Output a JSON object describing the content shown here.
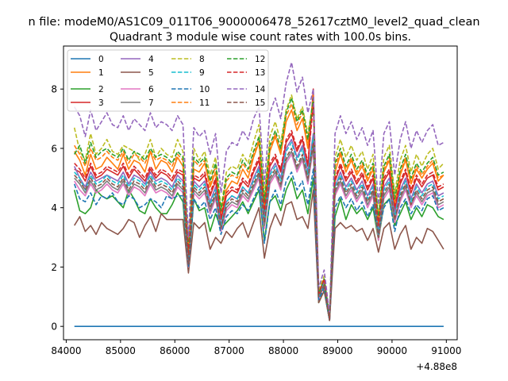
{
  "chart_data": {
    "type": "line",
    "suptitle": "n file: modeM0/AS1C09_011T06_9000006478_52617cztM0_level2_quad_clean",
    "title": "Quadrant 3 module wise count rates with 100.0s bins.",
    "xlabel": "",
    "ylabel": "",
    "x_offset_label": "+4.88e8",
    "xlim": [
      83950,
      91200
    ],
    "ylim": [
      -0.45,
      9.45
    ],
    "xticks": [
      84000,
      85000,
      86000,
      87000,
      88000,
      89000,
      90000,
      91000
    ],
    "yticks": [
      0,
      2,
      4,
      6,
      8
    ],
    "legend_location": "upper-left",
    "legend_columns": 4,
    "x_start": 84150,
    "x_step": 100,
    "series": [
      {
        "name": "0",
        "color": "#1f77b4",
        "dash": false,
        "values": [
          0,
          0,
          0,
          0,
          0,
          0,
          0,
          0,
          0,
          0,
          0,
          0,
          0,
          0,
          0,
          0,
          0,
          0,
          0,
          0,
          0,
          0,
          0,
          0,
          0,
          0,
          0,
          0,
          0,
          0,
          0,
          0,
          0,
          0,
          0,
          0,
          0,
          0,
          0,
          0,
          0,
          0,
          0,
          0,
          0,
          0,
          0,
          0,
          0,
          0,
          0,
          0,
          0,
          0,
          0,
          0,
          0,
          0,
          0,
          0,
          0,
          0,
          0,
          0,
          0,
          0,
          0,
          0,
          0
        ]
      },
      {
        "name": "1",
        "color": "#ff7f0e",
        "dash": false,
        "values": [
          5.9,
          5.6,
          5.1,
          5.8,
          5.3,
          5.4,
          5.7,
          5.5,
          5.3,
          5.8,
          5.3,
          5.6,
          5.5,
          5.2,
          5.9,
          5.3,
          5.6,
          5.5,
          5.2,
          5.7,
          5.4,
          2.3,
          5.3,
          5.2,
          5.5,
          4.7,
          5.2,
          3.6,
          4.6,
          4.9,
          4.8,
          5.3,
          5.0,
          5.7,
          6.2,
          4.0,
          5.9,
          6.4,
          5.8,
          6.9,
          7.3,
          6.6,
          7.0,
          6.0,
          7.6,
          1.1,
          1.5,
          0.3,
          5.2,
          5.8,
          5.2,
          5.6,
          5.1,
          5.4,
          4.9,
          5.3,
          3.4,
          5.2,
          5.6,
          4.1,
          5.1,
          5.6,
          4.8,
          5.3,
          5.0,
          5.3,
          5.5,
          4.9,
          5.1
        ]
      },
      {
        "name": "2",
        "color": "#2ca02c",
        "dash": false,
        "values": [
          4.6,
          3.9,
          3.8,
          4.0,
          4.6,
          4.4,
          4.3,
          4.4,
          4.2,
          4.0,
          4.6,
          4.3,
          3.9,
          3.8,
          4.3,
          4.0,
          3.8,
          3.8,
          4.1,
          4.5,
          4.2,
          1.9,
          4.3,
          3.9,
          4.0,
          3.2,
          3.8,
          3.3,
          3.5,
          3.7,
          3.9,
          4.2,
          3.8,
          4.2,
          4.6,
          2.9,
          4.2,
          4.4,
          3.9,
          4.6,
          5.0,
          4.3,
          4.6,
          3.8,
          5.0,
          0.8,
          1.2,
          0.2,
          3.7,
          4.3,
          3.6,
          4.1,
          3.8,
          4.0,
          3.6,
          4.0,
          2.9,
          4.1,
          4.3,
          3.4,
          3.8,
          4.2,
          3.6,
          4.0,
          3.7,
          4.1,
          4.0,
          3.7,
          3.6
        ]
      },
      {
        "name": "3",
        "color": "#d62728",
        "dash": false,
        "values": [
          5.3,
          5.2,
          4.9,
          5.4,
          5.0,
          5.1,
          5.3,
          5.2,
          5.1,
          5.4,
          5.0,
          5.3,
          5.1,
          4.9,
          5.3,
          5.0,
          5.2,
          5.1,
          4.9,
          5.2,
          5.1,
          2.3,
          5.0,
          4.9,
          5.1,
          4.4,
          4.9,
          3.6,
          4.4,
          4.6,
          4.5,
          4.9,
          4.7,
          5.2,
          5.6,
          3.8,
          5.4,
          5.7,
          5.2,
          6.2,
          6.5,
          5.9,
          6.3,
          5.4,
          8.0,
          1.1,
          1.6,
          0.3,
          4.9,
          5.4,
          4.9,
          5.2,
          4.8,
          5.1,
          4.6,
          5.0,
          3.3,
          4.9,
          5.2,
          3.9,
          4.8,
          5.2,
          4.5,
          5.0,
          4.7,
          5.0,
          5.1,
          4.6,
          4.7
        ]
      },
      {
        "name": "4",
        "color": "#9467bd",
        "dash": false,
        "values": [
          5.4,
          5.0,
          4.7,
          5.2,
          4.9,
          5.0,
          5.1,
          5.0,
          4.9,
          5.2,
          4.8,
          5.1,
          5.0,
          4.8,
          5.2,
          4.9,
          5.0,
          4.9,
          4.7,
          5.1,
          4.9,
          2.2,
          4.9,
          4.7,
          4.9,
          4.2,
          4.7,
          3.4,
          4.2,
          4.4,
          4.3,
          4.7,
          4.5,
          5.0,
          5.4,
          3.6,
          5.2,
          5.5,
          5.0,
          6.0,
          6.3,
          5.7,
          6.1,
          5.2,
          6.5,
          1.0,
          1.5,
          0.3,
          4.7,
          5.2,
          4.7,
          5.0,
          4.6,
          4.9,
          4.4,
          4.8,
          3.2,
          4.7,
          5.0,
          3.8,
          4.6,
          5.0,
          4.3,
          4.8,
          4.5,
          4.8,
          4.9,
          4.4,
          4.5
        ]
      },
      {
        "name": "5",
        "color": "#8c564b",
        "dash": false,
        "values": [
          3.4,
          3.7,
          3.2,
          3.4,
          3.1,
          3.5,
          3.3,
          3.2,
          3.1,
          3.3,
          3.6,
          3.5,
          3.0,
          3.4,
          3.7,
          3.2,
          3.8,
          3.6,
          3.6,
          3.6,
          3.6,
          1.8,
          3.5,
          3.3,
          3.5,
          2.6,
          3.0,
          2.8,
          3.2,
          3.0,
          3.3,
          3.5,
          3.0,
          3.5,
          4.0,
          2.3,
          3.3,
          3.8,
          3.4,
          4.1,
          4.2,
          3.6,
          3.7,
          3.3,
          4.6,
          0.8,
          1.2,
          0.2,
          3.3,
          3.5,
          3.3,
          3.4,
          3.2,
          3.3,
          2.9,
          3.3,
          2.5,
          3.3,
          3.5,
          2.6,
          3.1,
          3.4,
          2.6,
          3.0,
          2.8,
          3.3,
          3.2,
          2.9,
          2.6
        ]
      },
      {
        "name": "6",
        "color": "#e377c2",
        "dash": false,
        "values": [
          4.9,
          4.6,
          4.4,
          4.8,
          4.5,
          4.6,
          4.8,
          4.6,
          4.5,
          4.8,
          4.4,
          4.7,
          4.6,
          4.4,
          4.8,
          4.5,
          4.6,
          4.5,
          4.3,
          4.7,
          4.5,
          2.0,
          4.5,
          4.3,
          4.5,
          3.8,
          4.3,
          3.2,
          3.9,
          4.1,
          4.0,
          4.4,
          4.2,
          4.6,
          5.0,
          3.3,
          4.8,
          5.1,
          4.6,
          5.5,
          5.8,
          5.2,
          5.6,
          4.8,
          6.0,
          0.9,
          1.4,
          0.2,
          4.4,
          4.8,
          4.3,
          4.6,
          4.2,
          4.5,
          4.0,
          4.4,
          2.9,
          4.3,
          4.6,
          3.5,
          4.2,
          4.6,
          4.0,
          4.4,
          4.1,
          4.4,
          4.5,
          4.0,
          4.1
        ]
      },
      {
        "name": "7",
        "color": "#7f7f7f",
        "dash": false,
        "values": [
          5.0,
          4.8,
          4.5,
          4.9,
          4.6,
          4.7,
          4.9,
          4.7,
          4.6,
          4.9,
          4.5,
          4.8,
          4.7,
          4.5,
          4.9,
          4.6,
          4.7,
          4.6,
          4.4,
          4.8,
          4.6,
          2.1,
          4.6,
          4.4,
          4.6,
          3.9,
          4.4,
          3.3,
          4.0,
          4.2,
          4.1,
          4.5,
          4.3,
          4.7,
          5.1,
          3.4,
          4.9,
          5.2,
          4.7,
          5.6,
          5.9,
          5.3,
          5.7,
          4.9,
          6.1,
          1.0,
          1.4,
          0.2,
          4.5,
          4.9,
          4.4,
          4.7,
          4.3,
          4.6,
          4.1,
          4.5,
          3.0,
          4.4,
          4.7,
          3.6,
          4.3,
          4.7,
          4.1,
          4.5,
          4.2,
          4.5,
          4.6,
          4.1,
          4.2
        ]
      },
      {
        "name": "8",
        "color": "#bcbd22",
        "dash": true,
        "values": [
          6.7,
          5.9,
          5.6,
          6.5,
          5.8,
          6.0,
          6.3,
          5.9,
          5.8,
          6.1,
          6.0,
          5.9,
          5.6,
          5.8,
          6.3,
          5.7,
          6.0,
          5.8,
          5.7,
          6.3,
          5.9,
          2.6,
          6.0,
          5.6,
          5.9,
          5.1,
          5.7,
          4.0,
          5.2,
          5.4,
          5.3,
          5.8,
          5.5,
          6.2,
          6.8,
          4.4,
          6.4,
          6.9,
          6.2,
          7.3,
          7.8,
          7.0,
          7.4,
          6.5,
          7.6,
          1.2,
          1.7,
          0.4,
          5.7,
          6.3,
          5.7,
          6.1,
          5.6,
          5.9,
          5.3,
          5.8,
          3.7,
          5.7,
          6.1,
          4.5,
          5.6,
          6.1,
          5.2,
          5.8,
          5.4,
          5.8,
          6.0,
          5.3,
          5.5
        ]
      },
      {
        "name": "9",
        "color": "#17becf",
        "dash": true,
        "values": [
          5.2,
          5.0,
          4.6,
          5.1,
          4.8,
          4.9,
          5.1,
          4.9,
          4.8,
          5.1,
          4.7,
          5.0,
          4.9,
          4.7,
          5.1,
          4.8,
          4.9,
          4.8,
          4.6,
          5.0,
          4.8,
          2.2,
          4.8,
          4.6,
          4.8,
          4.1,
          4.6,
          3.4,
          4.2,
          4.4,
          4.3,
          4.7,
          4.5,
          4.9,
          5.3,
          3.6,
          5.1,
          5.4,
          4.9,
          5.9,
          6.2,
          5.6,
          6.0,
          5.1,
          6.4,
          1.0,
          1.5,
          0.3,
          4.7,
          5.1,
          4.6,
          4.9,
          4.5,
          4.8,
          4.3,
          4.7,
          3.1,
          4.6,
          4.9,
          3.7,
          4.5,
          4.9,
          4.2,
          4.7,
          4.4,
          4.7,
          4.8,
          4.3,
          4.4
        ]
      },
      {
        "name": "10",
        "color": "#1f77b4",
        "dash": true,
        "values": [
          4.8,
          4.3,
          4.2,
          4.5,
          4.1,
          4.4,
          4.3,
          4.5,
          4.2,
          4.1,
          4.4,
          4.3,
          4.0,
          4.1,
          4.3,
          4.2,
          4.0,
          4.4,
          4.3,
          4.4,
          4.4,
          2.0,
          4.3,
          4.0,
          4.2,
          3.6,
          4.0,
          3.1,
          3.7,
          3.9,
          3.8,
          4.1,
          3.9,
          4.3,
          4.7,
          2.8,
          4.2,
          4.6,
          4.1,
          4.9,
          5.2,
          4.6,
          4.9,
          4.1,
          5.3,
          0.9,
          1.3,
          0.2,
          4.0,
          4.4,
          4.0,
          4.3,
          3.9,
          4.2,
          3.7,
          4.1,
          3.1,
          4.0,
          4.3,
          3.2,
          4.0,
          4.3,
          3.8,
          4.1,
          3.9,
          4.3,
          4.4,
          3.9,
          4.0
        ]
      },
      {
        "name": "11",
        "color": "#ff7f0e",
        "dash": true,
        "values": [
          6.1,
          5.8,
          5.4,
          6.0,
          5.6,
          5.7,
          5.9,
          5.7,
          5.6,
          5.9,
          5.5,
          5.8,
          5.7,
          5.5,
          5.9,
          5.6,
          5.7,
          5.6,
          5.4,
          5.8,
          5.6,
          2.5,
          5.6,
          5.4,
          5.6,
          4.8,
          5.4,
          3.8,
          4.9,
          5.1,
          5.0,
          5.5,
          5.2,
          5.8,
          6.3,
          4.1,
          6.0,
          6.5,
          5.9,
          7.1,
          7.5,
          6.8,
          7.2,
          6.2,
          7.8,
          1.1,
          1.6,
          0.3,
          5.4,
          5.9,
          5.3,
          5.7,
          5.2,
          5.5,
          5.0,
          5.4,
          3.5,
          5.3,
          5.7,
          4.2,
          5.2,
          5.7,
          4.9,
          5.4,
          5.1,
          5.4,
          5.6,
          5.0,
          5.1
        ]
      },
      {
        "name": "12",
        "color": "#2ca02c",
        "dash": true,
        "values": [
          5.8,
          6.1,
          5.5,
          6.2,
          5.7,
          5.9,
          6.0,
          5.8,
          5.7,
          6.0,
          5.6,
          5.9,
          5.8,
          5.6,
          6.0,
          5.7,
          5.8,
          5.7,
          5.5,
          5.9,
          5.7,
          2.5,
          5.7,
          5.5,
          5.7,
          4.9,
          5.5,
          3.9,
          5.0,
          5.2,
          5.1,
          5.6,
          5.3,
          5.9,
          6.4,
          4.2,
          6.1,
          6.6,
          6.0,
          7.2,
          7.7,
          6.9,
          7.3,
          6.3,
          7.7,
          1.1,
          1.6,
          0.3,
          5.5,
          6.0,
          5.4,
          5.8,
          5.3,
          5.6,
          5.1,
          5.5,
          3.6,
          5.4,
          5.8,
          4.3,
          5.3,
          5.8,
          5.0,
          5.5,
          5.2,
          5.5,
          5.7,
          5.1,
          5.2
        ]
      },
      {
        "name": "13",
        "color": "#d62728",
        "dash": true,
        "values": [
          5.5,
          5.3,
          5.0,
          5.5,
          5.1,
          5.2,
          5.4,
          5.3,
          5.2,
          5.5,
          5.1,
          5.4,
          5.2,
          5.0,
          5.4,
          5.1,
          5.3,
          5.2,
          5.0,
          5.3,
          5.2,
          2.4,
          5.1,
          5.0,
          5.2,
          4.5,
          5.0,
          3.7,
          4.5,
          4.7,
          4.6,
          5.0,
          4.8,
          5.3,
          5.7,
          3.9,
          5.5,
          5.8,
          5.3,
          6.3,
          6.6,
          6.0,
          6.4,
          5.5,
          7.5,
          1.1,
          1.6,
          0.3,
          5.0,
          5.5,
          5.0,
          5.3,
          4.9,
          5.2,
          4.7,
          5.1,
          3.4,
          5.0,
          5.3,
          4.0,
          4.9,
          5.3,
          4.6,
          5.1,
          4.8,
          5.1,
          5.2,
          4.7,
          4.8
        ]
      },
      {
        "name": "14",
        "color": "#9467bd",
        "dash": true,
        "values": [
          7.4,
          7.1,
          6.4,
          7.3,
          6.6,
          6.9,
          7.2,
          6.8,
          6.7,
          7.1,
          6.6,
          7.0,
          6.8,
          6.6,
          7.2,
          6.7,
          6.9,
          6.8,
          6.6,
          7.1,
          6.8,
          3.0,
          6.7,
          6.4,
          6.6,
          5.8,
          6.5,
          4.5,
          5.9,
          6.2,
          6.1,
          6.6,
          6.3,
          7.0,
          7.4,
          4.8,
          7.2,
          7.7,
          7.0,
          8.2,
          8.9,
          7.9,
          8.4,
          7.2,
          8.0,
          1.3,
          1.9,
          0.4,
          6.5,
          7.1,
          6.5,
          6.9,
          6.3,
          6.7,
          6.1,
          6.6,
          4.1,
          6.5,
          6.9,
          5.1,
          6.3,
          6.9,
          6.0,
          6.6,
          6.2,
          6.6,
          6.8,
          6.1,
          6.2
        ]
      },
      {
        "name": "15",
        "color": "#8c564b",
        "dash": true,
        "values": [
          5.1,
          4.9,
          4.6,
          5.0,
          4.7,
          4.8,
          5.0,
          4.8,
          4.7,
          5.0,
          4.6,
          4.9,
          4.8,
          4.6,
          5.0,
          4.7,
          4.8,
          4.7,
          4.5,
          4.9,
          4.7,
          2.1,
          4.7,
          4.5,
          4.7,
          4.0,
          4.5,
          3.3,
          4.1,
          4.3,
          4.2,
          4.6,
          4.4,
          4.8,
          5.2,
          3.5,
          5.0,
          5.3,
          4.8,
          5.7,
          6.0,
          5.4,
          5.8,
          5.0,
          6.2,
          1.0,
          1.4,
          0.2,
          4.6,
          5.0,
          4.5,
          4.8,
          4.4,
          4.7,
          4.2,
          4.6,
          3.0,
          4.5,
          4.8,
          3.6,
          4.4,
          4.8,
          4.1,
          4.6,
          4.3,
          4.6,
          4.7,
          4.2,
          4.3
        ]
      }
    ]
  }
}
